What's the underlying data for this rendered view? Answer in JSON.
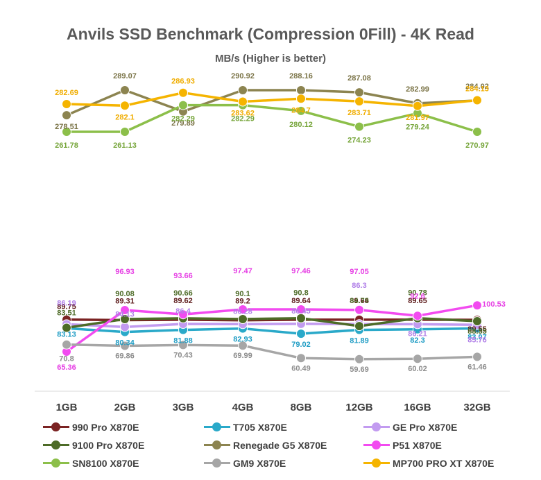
{
  "title": "Anvils SSD Benchmark (Compression 0Fill) - 4K Read",
  "subtitle": "MB/s (Higher is better)",
  "chart_data": {
    "type": "line",
    "title": "Anvils SSD Benchmark (Compression 0Fill) - 4K Read",
    "subtitle": "MB/s (Higher is better)",
    "categories": [
      "1GB",
      "2GB",
      "3GB",
      "4GB",
      "8GB",
      "12GB",
      "16GB",
      "32GB"
    ],
    "grid": false,
    "legend_position": "bottom",
    "series": [
      {
        "name": "990 Pro X870E",
        "color": "#7b2323",
        "values": [
          89.75,
          89.31,
          89.62,
          89.2,
          89.64,
          89.64,
          89.65,
          89.55
        ]
      },
      {
        "name": "T705 X870E",
        "color": "#2aa9c9",
        "values": [
          83.13,
          80.34,
          81.88,
          82.93,
          79.02,
          81.89,
          82.3,
          83.07
        ]
      },
      {
        "name": "GE Pro X870E",
        "color": "#c29bf0",
        "values": [
          86.19,
          84.13,
          86.4,
          86.28,
          86.45,
          86.3,
          86.21,
          85.76
        ]
      },
      {
        "name": "9100 Pro X870E",
        "color": "#4d6b27",
        "values": [
          83.51,
          90.08,
          90.66,
          90.1,
          90.8,
          84.79,
          90.78,
          88.55
        ]
      },
      {
        "name": "Renegade G5 X870E",
        "color": "#8c8450",
        "values": [
          278.51,
          289.07,
          279.89,
          290.92,
          288.16,
          287.08,
          282.99,
          284.02
        ]
      },
      {
        "name": "P51 X870E",
        "color": "#f24bf0",
        "values": [
          65.36,
          96.93,
          93.66,
          97.47,
          97.46,
          97.05,
          92.6,
          100.53
        ]
      },
      {
        "name": "SN8100 X870E",
        "color": "#8cbf4a",
        "values": [
          261.78,
          261.13,
          282.29,
          282.29,
          280.12,
          274.23,
          279.24,
          270.97
        ]
      },
      {
        "name": "GM9 X870E",
        "color": "#a6a6a6",
        "values": [
          70.8,
          69.86,
          70.43,
          69.99,
          60.49,
          59.69,
          60.02,
          61.46
        ]
      },
      {
        "name": "MP700 PRO XT X870E",
        "color": "#f5b400",
        "values": [
          282.69,
          282.1,
          286.93,
          283.62,
          284.7,
          283.71,
          281.97,
          284.13
        ]
      }
    ]
  }
}
